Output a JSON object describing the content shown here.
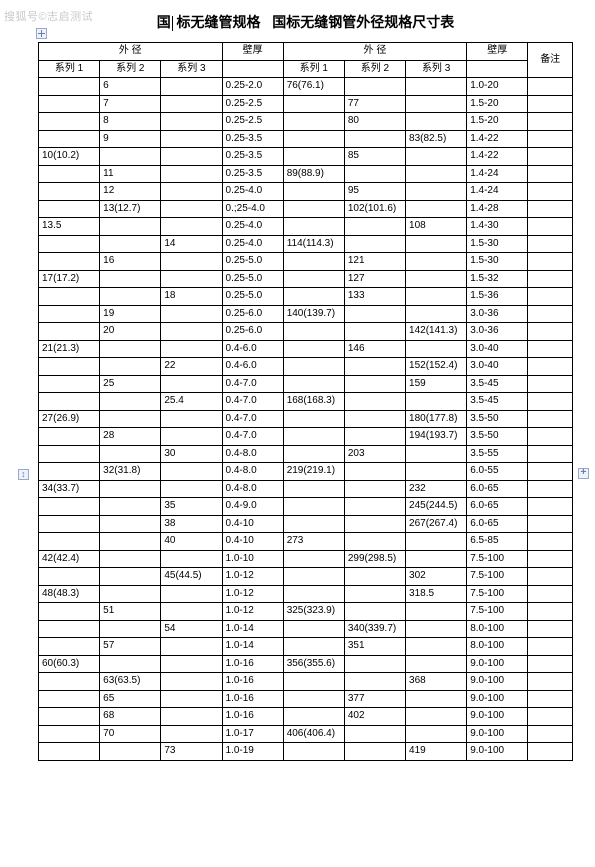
{
  "watermark": "搜狐号©志启测试",
  "title": {
    "part1": "国",
    "part2": "标无缝管规格",
    "part3": "国标无缝钢管外径规格尺寸表"
  },
  "headers": {
    "outer_diameter": "外 径",
    "outer_diameter_wide": "外  径",
    "wall_thickness": "壁厚",
    "remark": "备注",
    "series1": "系列 1",
    "series2": "系列 2",
    "series3": "系列 3"
  },
  "rows": [
    [
      "",
      "6",
      "",
      "0.25-2.0",
      "76(76.1)",
      "",
      "",
      "1.0-20",
      ""
    ],
    [
      "",
      "7",
      "",
      "0.25-2.5",
      "",
      "77",
      "",
      "1.5-20",
      ""
    ],
    [
      "",
      "8",
      "",
      "0.25-2.5",
      "",
      "80",
      "",
      "1.5-20",
      ""
    ],
    [
      "",
      "9",
      "",
      "0.25-3.5",
      "",
      "",
      "83(82.5)",
      "1.4-22",
      ""
    ],
    [
      "10(10.2)",
      "",
      "",
      "0.25-3.5",
      "",
      "85",
      "",
      "1.4-22",
      ""
    ],
    [
      "",
      "11",
      "",
      "0.25-3.5",
      "89(88.9)",
      "",
      "",
      "1.4-24",
      ""
    ],
    [
      "",
      "12",
      "",
      "0.25-4.0",
      "",
      "95",
      "",
      "1.4-24",
      ""
    ],
    [
      "",
      "13(12.7)",
      "",
      "0.;25-4.0",
      "",
      "102(101.6)",
      "",
      "1.4-28",
      ""
    ],
    [
      "13.5",
      "",
      "",
      "0.25-4.0",
      "",
      "",
      "108",
      "1.4-30",
      ""
    ],
    [
      "",
      "",
      "14",
      "0.25-4.0",
      "114(114.3)",
      "",
      "",
      "1.5-30",
      ""
    ],
    [
      "",
      "16",
      "",
      "0.25-5.0",
      "",
      "121",
      "",
      "1.5-30",
      ""
    ],
    [
      "17(17.2)",
      "",
      "",
      "0.25-5.0",
      "",
      "127",
      "",
      "1.5-32",
      ""
    ],
    [
      "",
      "",
      "18",
      "0.25-5.0",
      "",
      "133",
      "",
      "1.5-36",
      ""
    ],
    [
      "",
      "19",
      "",
      "0.25-6.0",
      "140(139.7)",
      "",
      "",
      "3.0-36",
      ""
    ],
    [
      "",
      "20",
      "",
      "0.25-6.0",
      "",
      "",
      "142(141.3)",
      "3.0-36",
      ""
    ],
    [
      "21(21.3)",
      "",
      "",
      "0.4-6.0",
      "",
      "146",
      "",
      "3.0-40",
      ""
    ],
    [
      "",
      "",
      "22",
      "0.4-6.0",
      "",
      "",
      "152(152.4)",
      "3.0-40",
      ""
    ],
    [
      "",
      "25",
      "",
      "0.4-7.0",
      "",
      "",
      "159",
      "3.5-45",
      ""
    ],
    [
      "",
      "",
      "25.4",
      "0.4-7.0",
      "168(168.3)",
      "",
      "",
      "3.5-45",
      ""
    ],
    [
      "27(26.9)",
      "",
      "",
      "0.4-7.0",
      "",
      "",
      "180(177.8)",
      "3.5-50",
      ""
    ],
    [
      "",
      "28",
      "",
      "0.4-7.0",
      "",
      "",
      "194(193.7)",
      "3.5-50",
      ""
    ],
    [
      "",
      "",
      "30",
      "0.4-8.0",
      "",
      "203",
      "",
      "3.5-55",
      ""
    ],
    [
      "",
      "32(31.8)",
      "",
      "0.4-8.0",
      "219(219.1)",
      "",
      "",
      "6.0-55",
      ""
    ],
    [
      "34(33.7)",
      "",
      "",
      "0.4-8.0",
      "",
      "",
      "232",
      "6.0-65",
      ""
    ],
    [
      "",
      "",
      "35",
      "0.4-9.0",
      "",
      "",
      "245(244.5)",
      "6.0-65",
      ""
    ],
    [
      "",
      "",
      "38",
      "0.4-10",
      "",
      "",
      "267(267.4)",
      "6.0-65",
      ""
    ],
    [
      "",
      "",
      "40",
      "0.4-10",
      "273",
      "",
      "",
      "6.5-85",
      ""
    ],
    [
      "42(42.4)",
      "",
      "",
      "1.0-10",
      "",
      "299(298.5)",
      "",
      "7.5-100",
      ""
    ],
    [
      "",
      "",
      "45(44.5)",
      "1.0-12",
      "",
      "",
      "302",
      "7.5-100",
      ""
    ],
    [
      "48(48.3)",
      "",
      "",
      "1.0-12",
      "",
      "",
      "318.5",
      "7.5-100",
      ""
    ],
    [
      "",
      "51",
      "",
      "1.0-12",
      "325(323.9)",
      "",
      "",
      "7.5-100",
      ""
    ],
    [
      "",
      "",
      "54",
      "1.0-14",
      "",
      "340(339.7)",
      "",
      "8.0-100",
      ""
    ],
    [
      "",
      "57",
      "",
      "1.0-14",
      "",
      "351",
      "",
      "8.0-100",
      ""
    ],
    [
      "60(60.3)",
      "",
      "",
      "1.0-16",
      "356(355.6)",
      "",
      "",
      "9.0-100",
      ""
    ],
    [
      "",
      "63(63.5)",
      "",
      "1.0-16",
      "",
      "",
      "368",
      "9.0-100",
      ""
    ],
    [
      "",
      "65",
      "",
      "1.0-16",
      "",
      "377",
      "",
      "9.0-100",
      ""
    ],
    [
      "",
      "68",
      "",
      "1.0-16",
      "",
      "402",
      "",
      "9.0-100",
      ""
    ],
    [
      "",
      "70",
      "",
      "1.0-17",
      "406(406.4)",
      "",
      "",
      "9.0-100",
      ""
    ],
    [
      "",
      "",
      "73",
      "1.0-19",
      "",
      "",
      "419",
      "9.0-100",
      ""
    ]
  ]
}
